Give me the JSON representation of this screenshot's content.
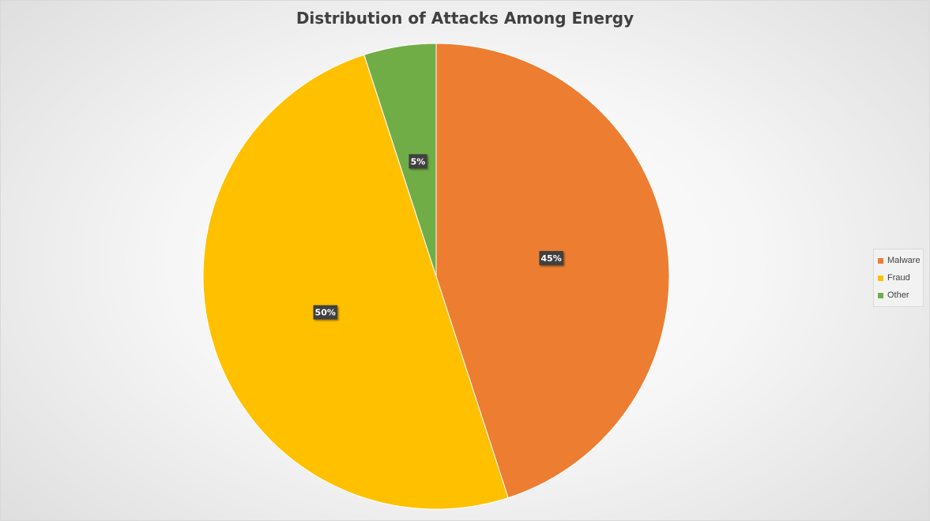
{
  "chart_data": {
    "type": "pie",
    "title": "Distribution of Attacks Among Energy",
    "categories": [
      "Malware",
      "Fraud",
      "Other"
    ],
    "values": [
      45,
      50,
      5
    ],
    "labels": [
      "45%",
      "50%",
      "5%"
    ],
    "colors": [
      "#ED7D31",
      "#FFC000",
      "#70AD47"
    ],
    "legend_position": "right"
  }
}
